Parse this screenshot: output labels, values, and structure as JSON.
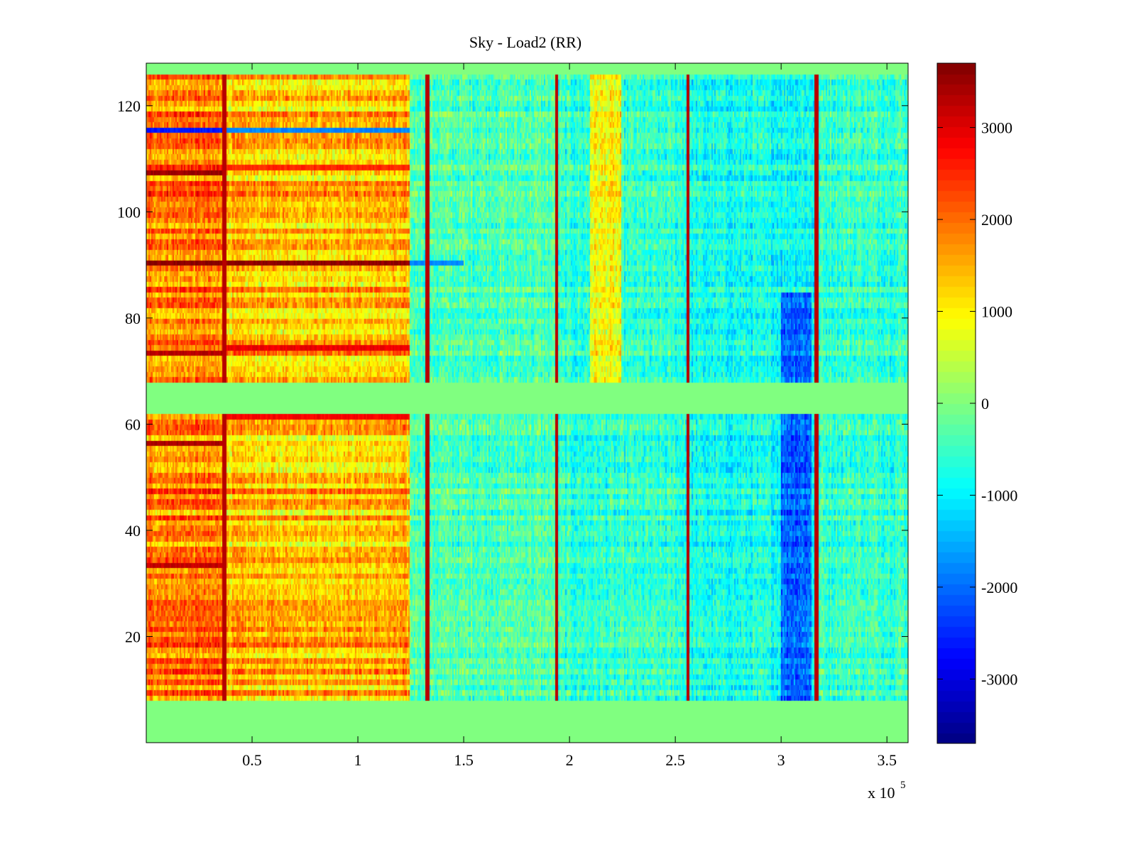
{
  "chart_data": {
    "type": "heatmap",
    "title": "Sky - Load2 (RR)",
    "xlabel": "",
    "ylabel": "",
    "x_multiplier_label": {
      "base": "x 10",
      "exponent": "5"
    },
    "xlim": [
      0,
      3.6
    ],
    "ylim": [
      0,
      128
    ],
    "x_ticks": [
      0.5,
      1,
      1.5,
      2,
      2.5,
      3,
      3.5
    ],
    "x_tick_labels": [
      "0.5",
      "1",
      "1.5",
      "2",
      "2.5",
      "3",
      "3.5"
    ],
    "y_ticks": [
      20,
      40,
      60,
      80,
      100,
      120
    ],
    "y_tick_labels": [
      "20",
      "40",
      "60",
      "80",
      "100",
      "120"
    ],
    "colorbar": {
      "colormap": "jet",
      "range": [
        -3700,
        3700
      ],
      "ticks": [
        -3000,
        -2000,
        -1000,
        0,
        1000,
        2000,
        3000
      ],
      "tick_labels": [
        "-3000",
        "-2000",
        "-1000",
        "0",
        "1000",
        "2000",
        "3000"
      ]
    },
    "empty_row_bands": [
      [
        0,
        8
      ],
      [
        62,
        68
      ],
      [
        126,
        128
      ]
    ],
    "segments_x_end": [
      0.37,
      1.25,
      1.33,
      1.94,
      2.55,
      3.16,
      3.6
    ],
    "segment_levels": [
      1900,
      1400,
      -300,
      -350,
      -600,
      -800,
      -500
    ],
    "spike_lines_x": [
      0.37,
      1.33,
      1.94,
      2.56,
      3.17
    ],
    "hot_rows": [
      {
        "row": 90,
        "x_range": [
          0,
          1.25
        ],
        "value": 3600
      },
      {
        "row": 107,
        "x_range": [
          0,
          0.37
        ],
        "value": 3500
      },
      {
        "row": 73,
        "x_range": [
          0,
          0.37
        ],
        "value": 3300
      },
      {
        "row": 74,
        "x_range": [
          0.37,
          1.25
        ],
        "value": 2900
      },
      {
        "row": 56,
        "x_range": [
          0,
          0.37
        ],
        "value": 3400
      },
      {
        "row": 33,
        "x_range": [
          0,
          0.37
        ],
        "value": 3200
      },
      {
        "row": 61,
        "x_range": [
          0.37,
          1.25
        ],
        "value": 2800
      },
      {
        "row": 108,
        "x_range": [
          0.37,
          1.25
        ],
        "value": 2500
      }
    ],
    "cold_rows": [
      {
        "row": 115,
        "x_range": [
          0,
          0.37
        ],
        "value": -2600
      },
      {
        "row": 115,
        "x_range": [
          0.37,
          1.25
        ],
        "value": -1800
      },
      {
        "row": 90,
        "x_range": [
          1.25,
          1.5
        ],
        "value": -1800
      }
    ],
    "cold_region": {
      "x_range": [
        3.0,
        3.15
      ],
      "row_range": [
        8,
        85
      ],
      "value": -2000
    },
    "warm_region": {
      "x_range": [
        2.1,
        2.25
      ],
      "row_range": [
        68,
        126
      ],
      "value": 900
    }
  }
}
